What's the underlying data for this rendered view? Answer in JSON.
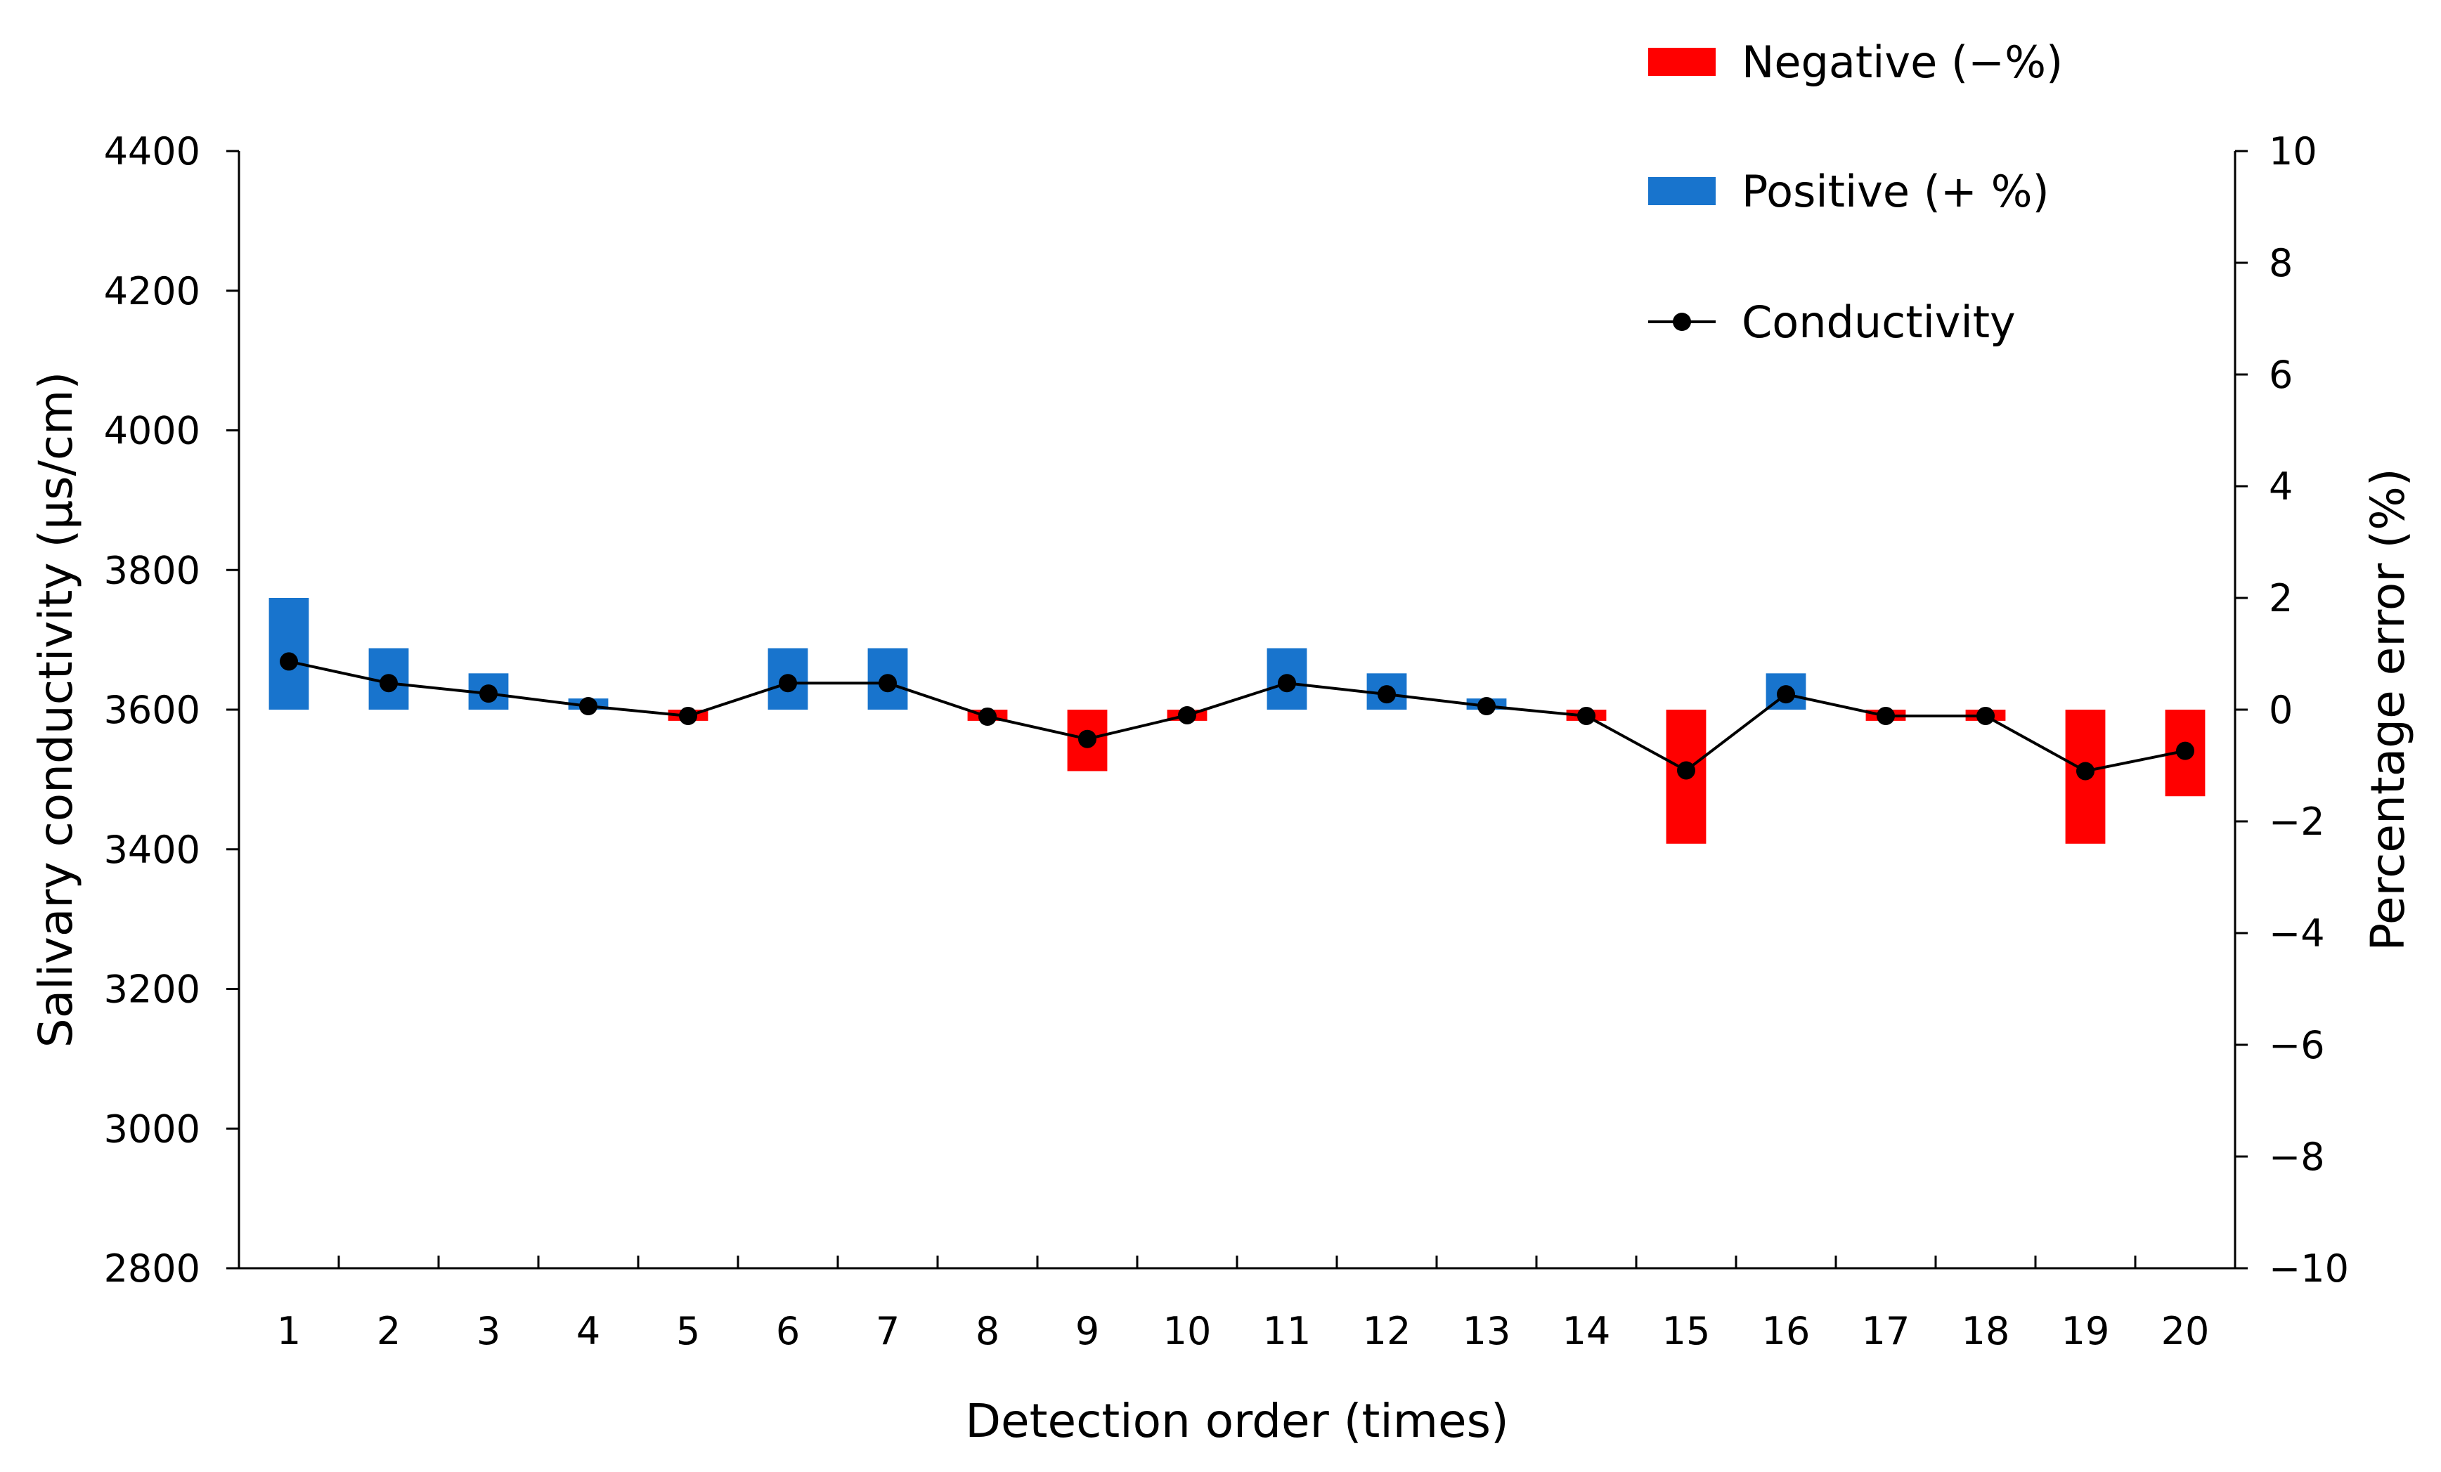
{
  "chart_data": {
    "type": "bar",
    "xlabel": "Detection order (times)",
    "ylabel": "Salivary conductivity (μs/cm)",
    "y2label": "Percentage error (%)",
    "categories": [
      "1",
      "2",
      "3",
      "4",
      "5",
      "6",
      "7",
      "8",
      "9",
      "10",
      "11",
      "12",
      "13",
      "14",
      "15",
      "16",
      "17",
      "18",
      "19",
      "20"
    ],
    "ylim": [
      2800,
      4400
    ],
    "yticks": [
      "2800",
      "3000",
      "3200",
      "3400",
      "3600",
      "3800",
      "4000",
      "4200",
      "4400"
    ],
    "y2lim": [
      -10,
      10
    ],
    "y2ticks": [
      "−10",
      "−8",
      "−6",
      "−4",
      "−2",
      "0",
      "2",
      "4",
      "6",
      "8",
      "10"
    ],
    "series": [
      {
        "name": "Conductivity",
        "type": "line",
        "axis": "left",
        "color": "#000000",
        "values": [
          3669,
          3638,
          3623,
          3605,
          3591,
          3638,
          3638,
          3590,
          3558,
          3592,
          3638,
          3622,
          3605,
          3591,
          3513,
          3622,
          3591,
          3591,
          3512,
          3541
        ]
      },
      {
        "name": "Percentage error",
        "type": "bar",
        "axis": "right",
        "values": [
          2.0,
          1.1,
          0.65,
          0.2,
          -0.2,
          1.1,
          1.1,
          -0.2,
          -1.1,
          -0.2,
          1.1,
          0.65,
          0.2,
          -0.2,
          -2.4,
          0.65,
          -0.2,
          -0.2,
          -2.4,
          -1.55
        ]
      }
    ],
    "bar_colors": {
      "positive": "#1874CD",
      "negative": "#FF0000"
    },
    "legend": {
      "position": "top-right",
      "items": [
        {
          "label": "Negative (−%)",
          "kind": "bar",
          "color": "#FF0000"
        },
        {
          "label": "Positive (+ %)",
          "kind": "bar",
          "color": "#1874CD"
        },
        {
          "label": "Conductivity",
          "kind": "line-marker",
          "color": "#000000"
        }
      ]
    },
    "grid": false
  }
}
